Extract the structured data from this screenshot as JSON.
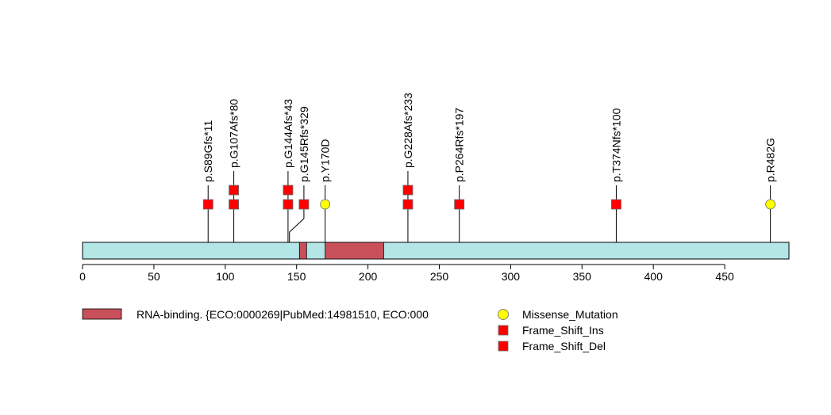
{
  "chart_data": {
    "type": "lollipop",
    "protein_length": 495,
    "xlim": [
      0,
      495
    ],
    "ticks": [
      0,
      50,
      100,
      150,
      200,
      250,
      300,
      350,
      400,
      450
    ],
    "domains": [
      {
        "name": "RNA-binding. {ECO:0000269|PubMed:14981510, ECO:000",
        "start": 152,
        "end": 157,
        "color": "#c8505a"
      },
      {
        "name": "RNA-binding. {ECO:0000269|PubMed:14981510, ECO:000",
        "start": 170,
        "end": 211,
        "color": "#c8505a"
      }
    ],
    "mutations": [
      {
        "label": "p.S89Gfs*11",
        "position": 88,
        "stack": [
          {
            "type": "Frame_Shift_Del"
          }
        ]
      },
      {
        "label": "p.G107Afs*80",
        "position": 106,
        "stack": [
          {
            "type": "Frame_Shift_Del"
          },
          {
            "type": "Frame_Shift_Del"
          }
        ]
      },
      {
        "label": "p.G144Afs*43",
        "position": 144,
        "stack": [
          {
            "type": "Frame_Shift_Del"
          },
          {
            "type": "Frame_Shift_Del"
          }
        ]
      },
      {
        "label": "p.G145Rfs*329",
        "position": 145,
        "stack": [
          {
            "type": "Frame_Shift_Del"
          }
        ]
      },
      {
        "label": "p.Y170D",
        "position": 170,
        "stack": [
          {
            "type": "Missense_Mutation"
          }
        ]
      },
      {
        "label": "p.G228Afs*233",
        "position": 228,
        "stack": [
          {
            "type": "Frame_Shift_Del"
          },
          {
            "type": "Frame_Shift_Del"
          }
        ]
      },
      {
        "label": "p.P264Rfs*197",
        "position": 264,
        "stack": [
          {
            "type": "Frame_Shift_Del"
          }
        ]
      },
      {
        "label": "p.T374Nfs*100",
        "position": 374,
        "stack": [
          {
            "type": "Frame_Shift_Del"
          }
        ]
      },
      {
        "label": "p.R482G",
        "position": 482,
        "stack": [
          {
            "type": "Missense_Mutation"
          }
        ]
      }
    ],
    "legend": {
      "domains": [
        {
          "name": "RNA-binding. {ECO:0000269|PubMed:14981510, ECO:000",
          "color": "#c8505a"
        }
      ],
      "mutation_types": [
        {
          "name": "Missense_Mutation",
          "shape": "circle",
          "color": "#ffff00"
        },
        {
          "name": "Frame_Shift_Ins",
          "shape": "square",
          "color": "#ff0000"
        },
        {
          "name": "Frame_Shift_Del",
          "shape": "square",
          "color": "#ff0000"
        }
      ]
    },
    "colors": {
      "protein_bar": "#b4e6e6",
      "domain": "#c8505a",
      "missense": "#ffff00",
      "frameshift": "#ff0000"
    }
  }
}
